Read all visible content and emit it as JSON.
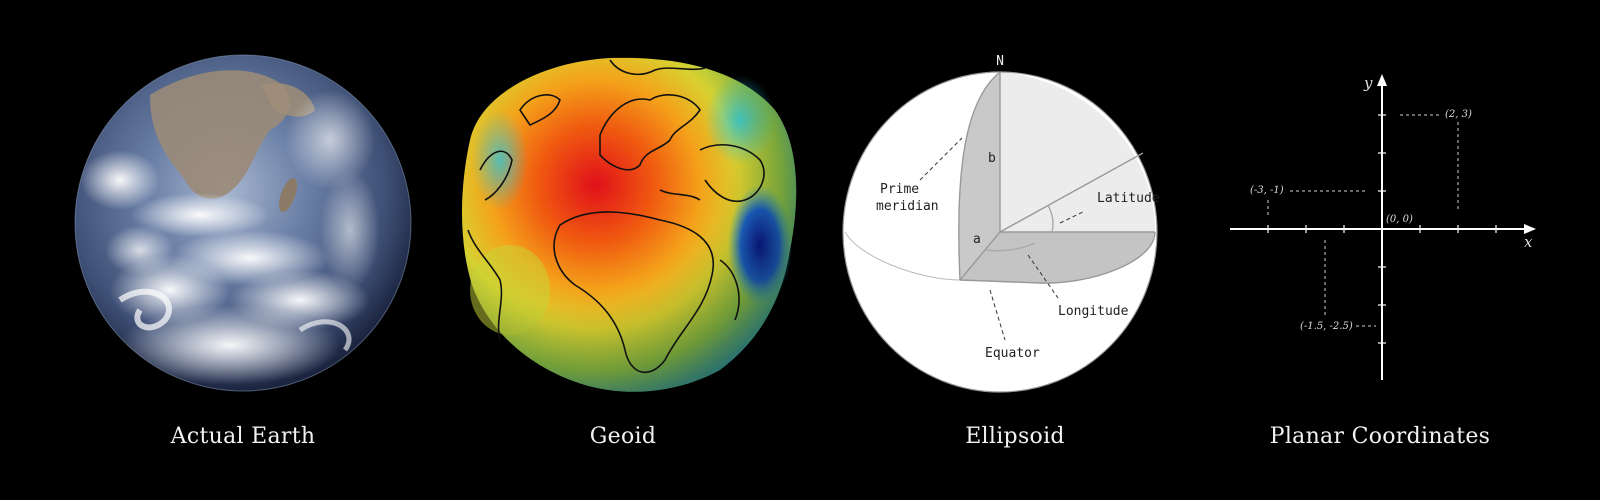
{
  "captions": {
    "earth": "Actual Earth",
    "geoid": "Geoid",
    "ellipsoid": "Ellipsoid",
    "planar": "Planar Coordinates"
  },
  "ellipsoid": {
    "north": "N",
    "b": "b",
    "a": "a",
    "prime_meridian_1": "Prime",
    "prime_meridian_2": "meridian",
    "latitude": "Latitude",
    "longitude": "Longitude",
    "equator": "Equator"
  },
  "planar": {
    "x_axis": "x",
    "y_axis": "y",
    "p1": "(2, 3)",
    "p2": "(-3, -1)",
    "p3": "(0, 0)",
    "p4": "(-1.5, -2.5)"
  },
  "colors": {
    "background": "#000000",
    "caption": "#f2f2f2",
    "axis": "#ffffff",
    "ellipsoid_fill": "#ffffff",
    "ellipsoid_shade": "#cfcfcf"
  },
  "icons": [
    "earth-photo",
    "geoid-heatmap",
    "ellipsoid-diagram",
    "cartesian-plane"
  ]
}
